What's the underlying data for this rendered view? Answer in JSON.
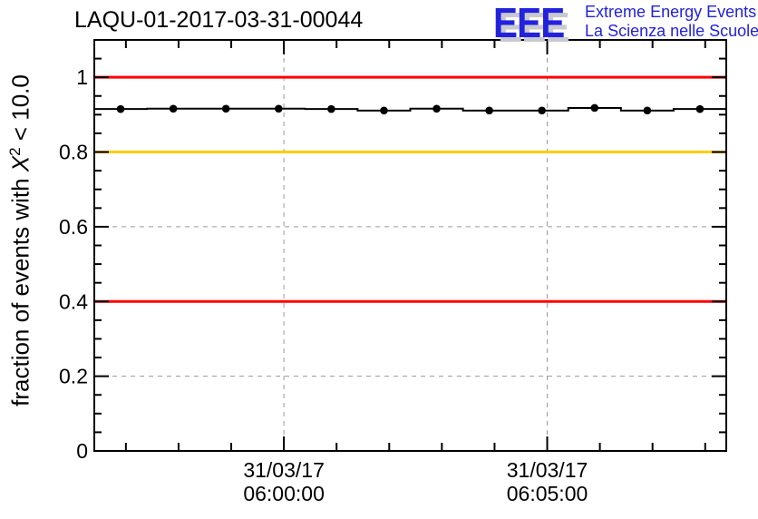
{
  "header": {
    "title": "LAQU-01-2017-03-31-00044",
    "logo": {
      "acronym": "EEE",
      "line1": "Extreme Energy Events",
      "line2": "La Scienza nelle Scuole",
      "text_color": "#2222dd",
      "shadow_color": "#c9c9d2"
    }
  },
  "chart_data": {
    "type": "line",
    "title": "LAQU-01-2017-03-31-00044",
    "ylabel": "fraction of events with X² < 10.0",
    "ylabel_parts": {
      "prefix": "fraction of events with ",
      "variable": "X",
      "superscript": "2",
      "suffix": " < 10.0"
    },
    "xlabel": "",
    "ylim": [
      0,
      1.1
    ],
    "xlim_minutes": [
      0,
      12
    ],
    "grid": true,
    "y_major_ticks": [
      0,
      0.2,
      0.4,
      0.6,
      0.8,
      1.0
    ],
    "y_major_tick_labels": [
      "0",
      "0.2",
      "0.4",
      "0.6",
      "0.8",
      "1"
    ],
    "y_minor_tick_step": 0.05,
    "x_major_ticks": [
      {
        "t": 3.6,
        "label_line1": "31/03/17",
        "label_line2": "06:00:00"
      },
      {
        "t": 8.6,
        "label_line1": "31/03/17",
        "label_line2": "06:05:00"
      }
    ],
    "x_minor_tick_start": 0.6,
    "x_minor_tick_step": 1,
    "series": [
      {
        "style": "step",
        "marker": "circle",
        "color": "#000000",
        "bin_centers_minutes": [
          0.5,
          1.5,
          2.5,
          3.5,
          4.5,
          5.5,
          6.5,
          7.5,
          8.5,
          9.5,
          10.5,
          11.5
        ],
        "values": [
          0.915,
          0.916,
          0.916,
          0.916,
          0.915,
          0.911,
          0.916,
          0.911,
          0.911,
          0.918,
          0.911,
          0.915
        ]
      }
    ],
    "reference_lines": [
      {
        "y": 1.0,
        "color": "#ff0000"
      },
      {
        "y": 0.8,
        "color": "#ffcc00"
      },
      {
        "y": 0.4,
        "color": "#ff0000"
      }
    ],
    "gridline_color": "#999999"
  }
}
